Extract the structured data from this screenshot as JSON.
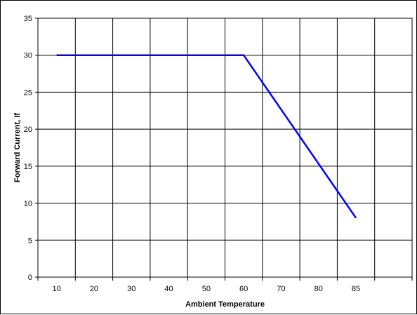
{
  "chart_data": {
    "type": "line",
    "xlabel": "Ambient Temperature",
    "ylabel": "Forward Current, If",
    "x_tick_labels": [
      "10",
      "20",
      "30",
      "40",
      "50",
      "60",
      "70",
      "80",
      "85"
    ],
    "ylim": [
      0,
      35
    ],
    "y_ticks": [
      0,
      5,
      10,
      15,
      20,
      25,
      30,
      35
    ],
    "grid": true,
    "series": [
      {
        "color": "#0000ff",
        "points": [
          {
            "x": "10",
            "y": 30
          },
          {
            "x": "60",
            "y": 30
          },
          {
            "x": "85",
            "y": 8
          }
        ]
      }
    ]
  }
}
